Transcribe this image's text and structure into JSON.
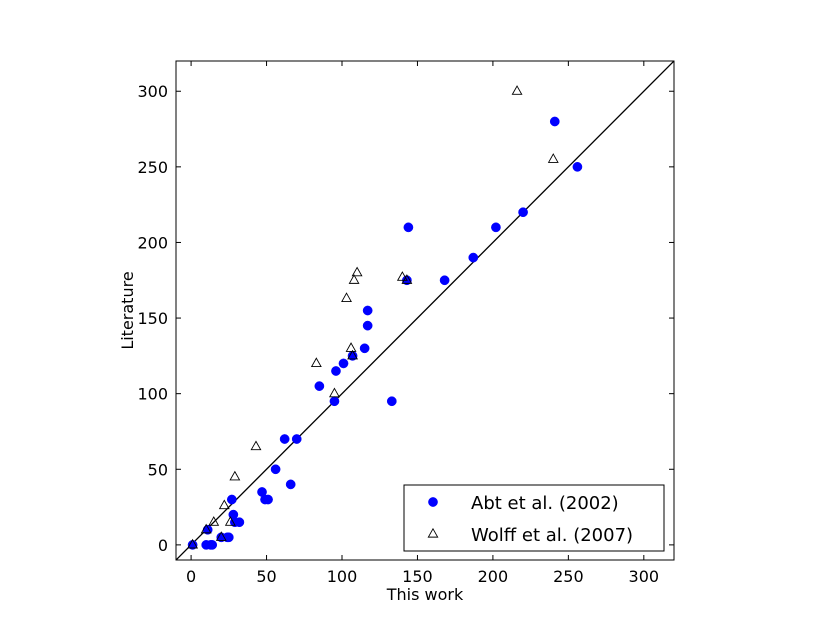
{
  "chart_data": {
    "type": "scatter",
    "xlabel": "This work",
    "ylabel": "Literature",
    "xlim": [
      -10,
      320
    ],
    "ylim": [
      -10,
      320
    ],
    "xticks": [
      0,
      50,
      100,
      150,
      200,
      250,
      300
    ],
    "yticks": [
      0,
      50,
      100,
      150,
      200,
      250,
      300
    ],
    "grid": false,
    "legend_position": "lower-right",
    "reference_line": "y = x",
    "series": [
      {
        "name": "Abt et al. (2002)",
        "marker": "filled-circle",
        "color": "#0000ff",
        "points": [
          [
            1,
            0
          ],
          [
            10,
            0
          ],
          [
            11,
            10
          ],
          [
            13,
            0
          ],
          [
            14,
            0
          ],
          [
            20,
            5
          ],
          [
            24,
            5
          ],
          [
            25,
            5
          ],
          [
            27,
            30
          ],
          [
            28,
            20
          ],
          [
            29,
            15
          ],
          [
            32,
            15
          ],
          [
            47,
            35
          ],
          [
            49,
            30
          ],
          [
            51,
            30
          ],
          [
            56,
            50
          ],
          [
            62,
            70
          ],
          [
            66,
            40
          ],
          [
            70,
            70
          ],
          [
            85,
            105
          ],
          [
            95,
            95
          ],
          [
            96,
            115
          ],
          [
            101,
            120
          ],
          [
            107,
            125
          ],
          [
            115,
            130
          ],
          [
            117,
            145
          ],
          [
            117,
            155
          ],
          [
            133,
            95
          ],
          [
            143,
            175
          ],
          [
            144,
            210
          ],
          [
            168,
            175
          ],
          [
            187,
            190
          ],
          [
            202,
            210
          ],
          [
            220,
            220
          ],
          [
            241,
            280
          ],
          [
            256,
            250
          ]
        ]
      },
      {
        "name": "Wolff et al. (2007)",
        "marker": "open-triangle",
        "color": "#000000",
        "points": [
          [
            1,
            0
          ],
          [
            10,
            10
          ],
          [
            15,
            15
          ],
          [
            20,
            5
          ],
          [
            22,
            26
          ],
          [
            26,
            15
          ],
          [
            29,
            45
          ],
          [
            43,
            65
          ],
          [
            83,
            120
          ],
          [
            95,
            100
          ],
          [
            103,
            163
          ],
          [
            106,
            130
          ],
          [
            107,
            125
          ],
          [
            108,
            175
          ],
          [
            110,
            180
          ],
          [
            140,
            177
          ],
          [
            143,
            175
          ],
          [
            216,
            300
          ],
          [
            240,
            255
          ]
        ]
      }
    ]
  }
}
